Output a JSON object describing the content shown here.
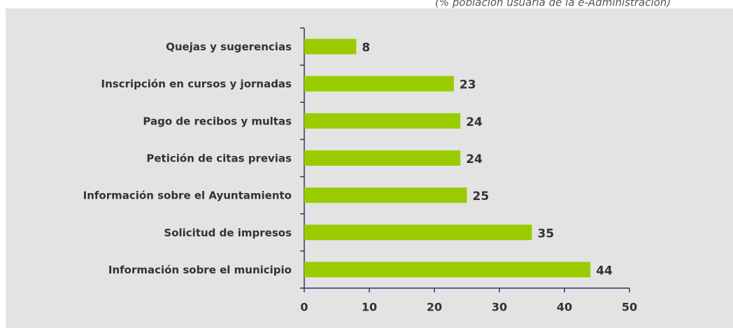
{
  "chart_data": {
    "type": "bar",
    "orientation": "horizontal",
    "subtitle": "(% población usuaria de la e-Administración)",
    "categories": [
      "Quejas y sugerencias",
      "Inscripción en cursos y jornadas",
      "Pago de recibos y multas",
      "Petición de citas previas",
      "Información sobre el Ayuntamiento",
      "Solicitud de impresos",
      "Información sobre el municipio"
    ],
    "values": [
      8,
      23,
      24,
      24,
      25,
      35,
      44
    ],
    "color": "#99cc00",
    "xlim": [
      0,
      50
    ],
    "xticks": [
      0,
      10,
      20,
      30,
      40,
      50
    ],
    "grid": false
  }
}
